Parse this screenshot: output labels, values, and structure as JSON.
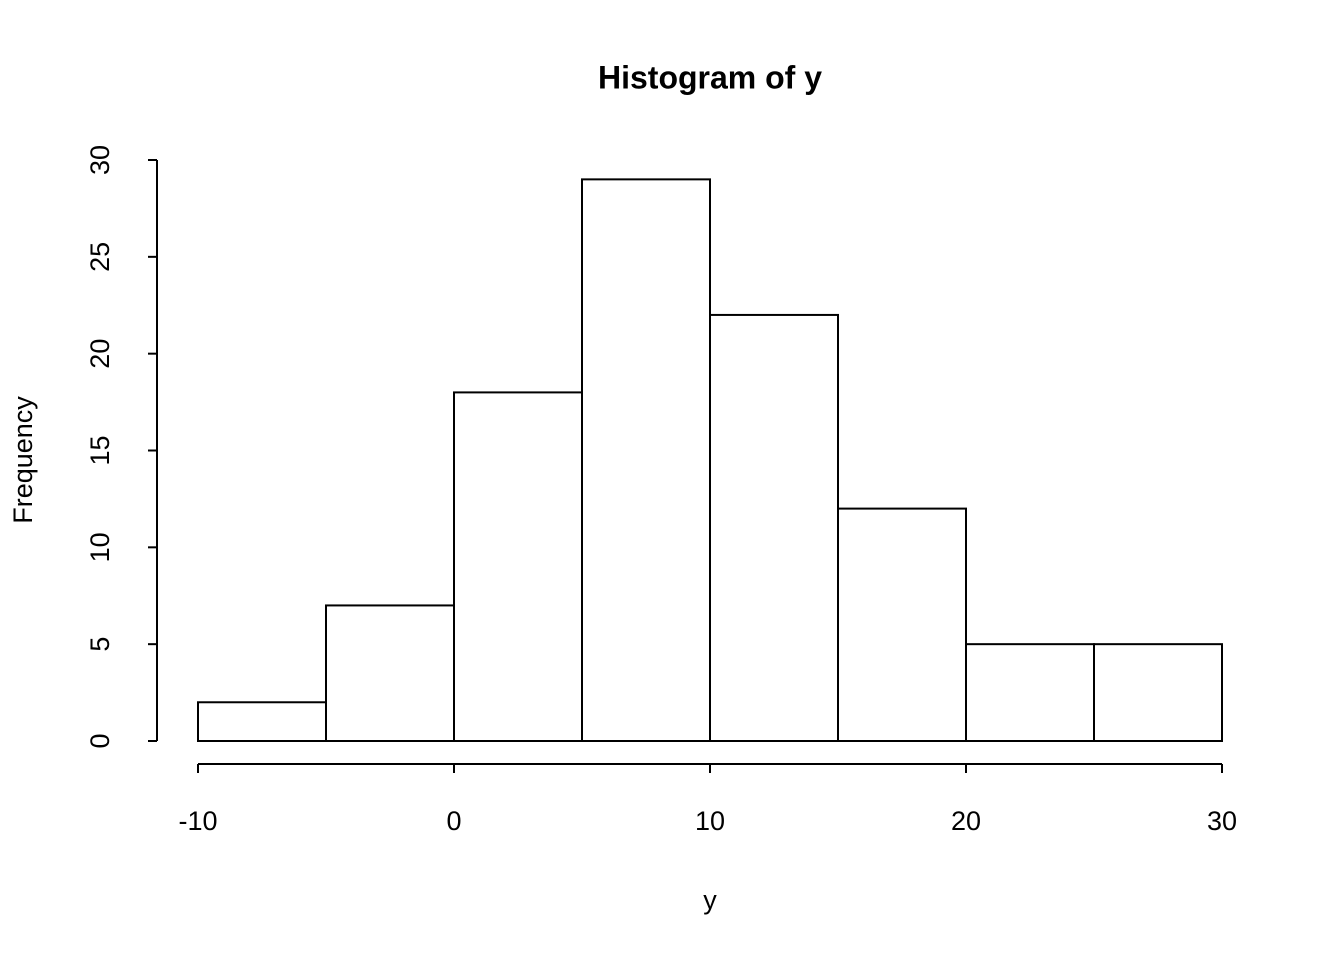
{
  "chart_data": {
    "type": "histogram",
    "title": "Histogram of y",
    "x_label": "y",
    "y_label": "Frequency",
    "bins": [
      -10,
      -5,
      0,
      5,
      10,
      15,
      20,
      25,
      30
    ],
    "values": [
      2,
      7,
      18,
      29,
      22,
      12,
      5,
      5
    ],
    "color": "#ffffff",
    "edge_color": "#000000",
    "xlim": [
      -10,
      30
    ],
    "xticks": [
      -10,
      0,
      10,
      20,
      30
    ],
    "ylim": [
      0,
      30
    ],
    "yticks": [
      0,
      5,
      10,
      15,
      20,
      25,
      30
    ]
  }
}
